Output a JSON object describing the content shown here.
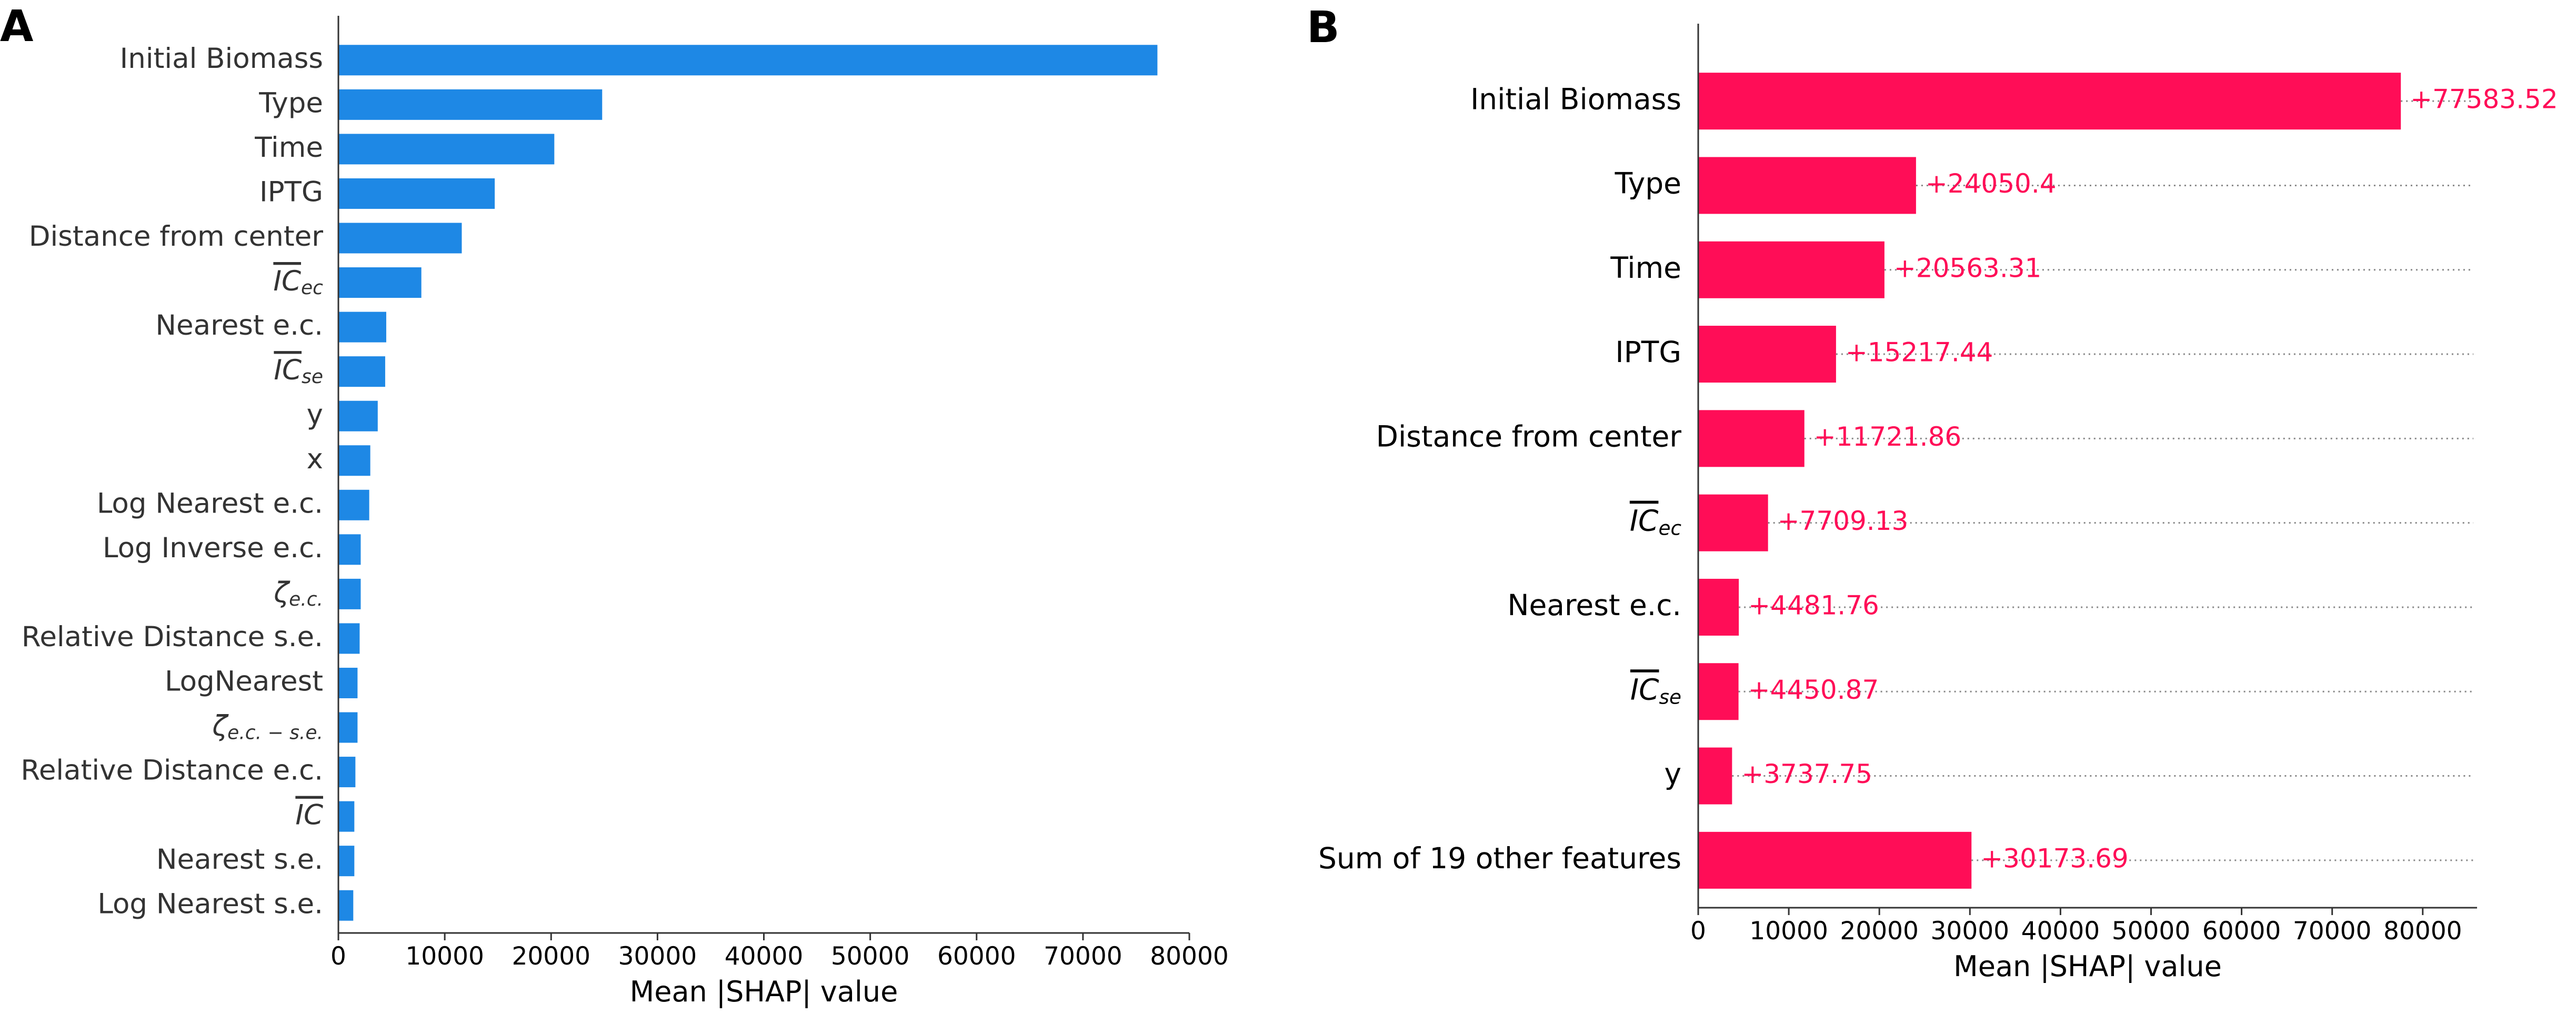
{
  "chart_data": [
    {
      "panel": "A",
      "type": "bar",
      "orientation": "horizontal",
      "xlabel": "Mean |SHAP| value",
      "ylabel": "",
      "xlim": [
        0,
        80000
      ],
      "xticks": [
        "0",
        "10000",
        "20000",
        "30000",
        "40000",
        "50000",
        "60000",
        "70000",
        "80000"
      ],
      "bar_color": "#1e88e5",
      "categories": [
        {
          "label": "Initial Biomass",
          "value": 77000
        },
        {
          "label": "Type",
          "value": 24800
        },
        {
          "label": "Time",
          "value": 20300
        },
        {
          "label": "IPTG",
          "value": 14700
        },
        {
          "label": "Distance from center",
          "value": 11600
        },
        {
          "label": "IC",
          "sub": "ec",
          "overline": true,
          "value": 7800
        },
        {
          "label": "Nearest e.c.",
          "value": 4500
        },
        {
          "label": "IC",
          "sub": "se",
          "overline": true,
          "value": 4400
        },
        {
          "label": "y",
          "value": 3700
        },
        {
          "label": "x",
          "value": 3000
        },
        {
          "label": "Log Nearest e.c.",
          "value": 2900
        },
        {
          "label": "Log Inverse e.c.",
          "value": 2100
        },
        {
          "label": "ζ",
          "sub": "e.c.",
          "value": 2100
        },
        {
          "label": "Relative Distance s.e.",
          "value": 2000
        },
        {
          "label": "LogNearest",
          "value": 1800
        },
        {
          "label": "ζ",
          "sub": "e.c. − s.e.",
          "value": 1800
        },
        {
          "label": "Relative Distance e.c.",
          "value": 1600
        },
        {
          "label": "IC",
          "overline": true,
          "value": 1500
        },
        {
          "label": "Nearest s.e.",
          "value": 1500
        },
        {
          "label": "Log Nearest s.e.",
          "value": 1400
        }
      ]
    },
    {
      "panel": "B",
      "type": "bar",
      "orientation": "horizontal",
      "xlabel": "Mean |SHAP| value",
      "ylabel": "",
      "xlim": [
        0,
        86000
      ],
      "xticks": [
        "0",
        "10000",
        "20000",
        "30000",
        "40000",
        "50000",
        "60000",
        "70000",
        "80000"
      ],
      "bar_color": "#ff0d57",
      "label_color": "#ff0d57",
      "categories": [
        {
          "label": "Initial Biomass",
          "value": 77583.52,
          "value_label": "+77583.52"
        },
        {
          "label": "Type",
          "value": 24050.4,
          "value_label": "+24050.4"
        },
        {
          "label": "Time",
          "value": 20563.31,
          "value_label": "+20563.31"
        },
        {
          "label": "IPTG",
          "value": 15217.44,
          "value_label": "+15217.44"
        },
        {
          "label": "Distance from center",
          "value": 11721.86,
          "value_label": "+11721.86"
        },
        {
          "label": "IC",
          "sub": "ec",
          "overline": true,
          "value": 7709.13,
          "value_label": "+7709.13"
        },
        {
          "label": "Nearest e.c.",
          "value": 4481.76,
          "value_label": "+4481.76"
        },
        {
          "label": "IC",
          "sub": "se",
          "overline": true,
          "value": 4450.87,
          "value_label": "+4450.87"
        },
        {
          "label": "y",
          "value": 3737.75,
          "value_label": "+3737.75"
        },
        {
          "label": "Sum of 19 other features",
          "value": 30173.69,
          "value_label": "+30173.69"
        }
      ]
    }
  ]
}
